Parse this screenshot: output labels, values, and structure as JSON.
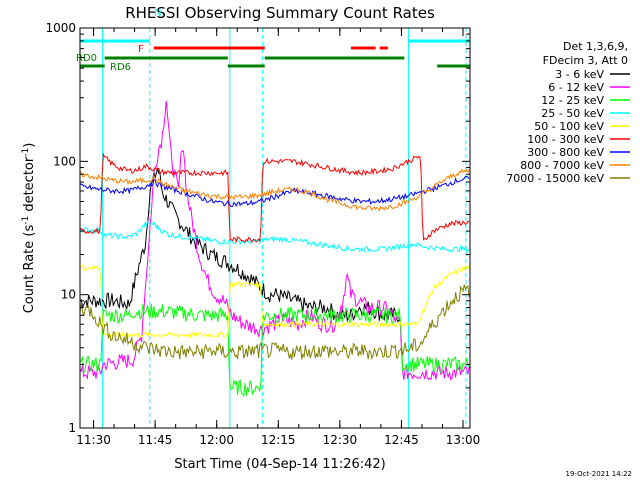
{
  "chart_data": {
    "type": "line",
    "title": "RHESSI Observing Summary Count Rates",
    "xlabel": "Start Time (04-Sep-14 11:26:42)",
    "ylabel_main": "Count Rate (s",
    "ylabel_sup1": "-1",
    "ylabel_mid": " detector",
    "ylabel_sup2": "-1",
    "ylabel_end": ")",
    "yscale": "log",
    "xlim": [
      0,
      95
    ],
    "ylim": [
      1,
      1000
    ],
    "x_unit": "minutes after 11:26:42",
    "xticks": [
      {
        "label": "11:30",
        "v": 3.3
      },
      {
        "label": "11:45",
        "v": 18.3
      },
      {
        "label": "12:00",
        "v": 33.3
      },
      {
        "label": "12:15",
        "v": 48.3
      },
      {
        "label": "12:30",
        "v": 63.3
      },
      {
        "label": "12:45",
        "v": 78.3
      },
      {
        "label": "13:00",
        "v": 93.3
      }
    ],
    "yticks": [
      {
        "label": "1",
        "v": 1
      },
      {
        "label": "10",
        "v": 10
      },
      {
        "label": "100",
        "v": 100
      },
      {
        "label": "1000",
        "v": 1000
      }
    ],
    "legend": {
      "header": [
        "Det 1,3,6,9,",
        "FDecim 3, Att 0"
      ],
      "placement": "right"
    },
    "series": [
      {
        "name": "3 - 6 keV",
        "color": "#000000",
        "points": [
          [
            0,
            9
          ],
          [
            5,
            9
          ],
          [
            8,
            9
          ],
          [
            12,
            8.5
          ],
          [
            14,
            15
          ],
          [
            16,
            25
          ],
          [
            17,
            60
          ],
          [
            19,
            90
          ],
          [
            20,
            60
          ],
          [
            23,
            40
          ],
          [
            26,
            30
          ],
          [
            28,
            25
          ],
          [
            32,
            20
          ],
          [
            35,
            18
          ],
          [
            38,
            16
          ],
          [
            42,
            13
          ],
          [
            46,
            10
          ],
          [
            48,
            10
          ],
          [
            52,
            9
          ],
          [
            56,
            8
          ],
          [
            60,
            8
          ],
          [
            63,
            7
          ],
          [
            66,
            7
          ],
          [
            68,
            8
          ],
          [
            70,
            8
          ],
          [
            72,
            7.5
          ],
          [
            74,
            7
          ],
          [
            76,
            7
          ],
          [
            78,
            7
          ]
        ]
      },
      {
        "name": "6 - 12 keV",
        "color": "#ff00ff",
        "points": [
          [
            0,
            2.6
          ],
          [
            5,
            2.6
          ],
          [
            5.5,
            3
          ],
          [
            12,
            3.2
          ],
          [
            13,
            3.3
          ],
          [
            15,
            5
          ],
          [
            17,
            30
          ],
          [
            18,
            80
          ],
          [
            19,
            120
          ],
          [
            20,
            150
          ],
          [
            21,
            300
          ],
          [
            22,
            120
          ],
          [
            23,
            80
          ],
          [
            24,
            60
          ],
          [
            25,
            150
          ],
          [
            26,
            60
          ],
          [
            27,
            40
          ],
          [
            29,
            20
          ],
          [
            31,
            13
          ],
          [
            33,
            10
          ],
          [
            35,
            9
          ],
          [
            37,
            7
          ],
          [
            40,
            6
          ],
          [
            44,
            5.5
          ],
          [
            47,
            6
          ],
          [
            50,
            6.5
          ],
          [
            53,
            6
          ],
          [
            56,
            7
          ],
          [
            59,
            6
          ],
          [
            62,
            6
          ],
          [
            64,
            9
          ],
          [
            65,
            14
          ],
          [
            66,
            10
          ],
          [
            68,
            9
          ],
          [
            70,
            8
          ],
          [
            72,
            8
          ],
          [
            74,
            8
          ],
          [
            76,
            7
          ],
          [
            78,
            6
          ],
          [
            78.5,
            2.6
          ],
          [
            95,
            2.6
          ]
        ]
      },
      {
        "name": "12 - 25 keV",
        "color": "#00ff00",
        "points": [
          [
            0,
            3
          ],
          [
            5,
            3
          ],
          [
            5.5,
            7
          ],
          [
            12,
            7
          ],
          [
            13,
            7.5
          ],
          [
            20,
            7.5
          ],
          [
            30,
            7
          ],
          [
            36,
            7
          ],
          [
            36.5,
            2
          ],
          [
            44,
            2
          ],
          [
            44.5,
            7
          ],
          [
            60,
            7
          ],
          [
            78,
            7
          ],
          [
            78.5,
            3
          ],
          [
            95,
            3
          ]
        ]
      },
      {
        "name": "25 - 50 keV",
        "color": "#00ffff",
        "points": [
          [
            0,
            31
          ],
          [
            5,
            30
          ],
          [
            6,
            28
          ],
          [
            12,
            27
          ],
          [
            14,
            29
          ],
          [
            16,
            34
          ],
          [
            18,
            34
          ],
          [
            20,
            30
          ],
          [
            22,
            28
          ],
          [
            26,
            27
          ],
          [
            30,
            26
          ],
          [
            34,
            25
          ],
          [
            38,
            25
          ],
          [
            42,
            25
          ],
          [
            46,
            26
          ],
          [
            50,
            26
          ],
          [
            54,
            25
          ],
          [
            58,
            24
          ],
          [
            62,
            23
          ],
          [
            66,
            22
          ],
          [
            70,
            22
          ],
          [
            74,
            22
          ],
          [
            78,
            23
          ],
          [
            81,
            24
          ],
          [
            84,
            23
          ],
          [
            88,
            22
          ],
          [
            92,
            22
          ],
          [
            95,
            22
          ]
        ]
      },
      {
        "name": "50 - 100 keV",
        "color": "#ffff00",
        "points": [
          [
            0,
            16
          ],
          [
            5,
            16
          ],
          [
            5.5,
            5
          ],
          [
            36,
            5
          ],
          [
            36.5,
            12
          ],
          [
            44,
            12
          ],
          [
            44.5,
            6
          ],
          [
            82,
            6
          ],
          [
            84,
            8
          ],
          [
            86,
            11
          ],
          [
            90,
            14
          ],
          [
            94,
            16
          ],
          [
            95,
            16
          ]
        ]
      },
      {
        "name": "100 - 300 keV",
        "color": "#ff0000",
        "points": [
          [
            0,
            30
          ],
          [
            3,
            30
          ],
          [
            5,
            30
          ],
          [
            5.5,
            110
          ],
          [
            8,
            95
          ],
          [
            10,
            88
          ],
          [
            12,
            85
          ],
          [
            14,
            86
          ],
          [
            16,
            92
          ],
          [
            18,
            88
          ],
          [
            20,
            83
          ],
          [
            24,
            82
          ],
          [
            28,
            82
          ],
          [
            32,
            82
          ],
          [
            36,
            82
          ],
          [
            36.5,
            26
          ],
          [
            44,
            26
          ],
          [
            44.5,
            100
          ],
          [
            48,
            100
          ],
          [
            52,
            100
          ],
          [
            56,
            95
          ],
          [
            60,
            90
          ],
          [
            64,
            85
          ],
          [
            68,
            82
          ],
          [
            72,
            84
          ],
          [
            76,
            88
          ],
          [
            80,
            100
          ],
          [
            83,
            110
          ],
          [
            83.5,
            25
          ],
          [
            86,
            30
          ],
          [
            90,
            34
          ],
          [
            95,
            35
          ]
        ]
      },
      {
        "name": "300 - 800 keV",
        "color": "#0000ff",
        "points": [
          [
            0,
            65
          ],
          [
            4,
            62
          ],
          [
            8,
            60
          ],
          [
            12,
            60
          ],
          [
            16,
            65
          ],
          [
            18,
            70
          ],
          [
            20,
            65
          ],
          [
            24,
            60
          ],
          [
            28,
            55
          ],
          [
            32,
            50
          ],
          [
            36,
            48
          ],
          [
            40,
            48
          ],
          [
            44,
            50
          ],
          [
            48,
            55
          ],
          [
            52,
            60
          ],
          [
            56,
            58
          ],
          [
            60,
            55
          ],
          [
            64,
            52
          ],
          [
            68,
            50
          ],
          [
            72,
            50
          ],
          [
            76,
            52
          ],
          [
            80,
            55
          ],
          [
            84,
            60
          ],
          [
            88,
            65
          ],
          [
            92,
            72
          ],
          [
            95,
            75
          ]
        ]
      },
      {
        "name": "800 - 7000 keV",
        "color": "#ff8000",
        "points": [
          [
            0,
            80
          ],
          [
            4,
            76
          ],
          [
            8,
            72
          ],
          [
            12,
            70
          ],
          [
            16,
            72
          ],
          [
            18,
            75
          ],
          [
            20,
            68
          ],
          [
            24,
            62
          ],
          [
            28,
            58
          ],
          [
            32,
            55
          ],
          [
            36,
            54
          ],
          [
            40,
            54
          ],
          [
            44,
            56
          ],
          [
            48,
            60
          ],
          [
            52,
            62
          ],
          [
            56,
            58
          ],
          [
            60,
            52
          ],
          [
            64,
            48
          ],
          [
            68,
            45
          ],
          [
            72,
            44
          ],
          [
            76,
            46
          ],
          [
            80,
            50
          ],
          [
            84,
            58
          ],
          [
            88,
            70
          ],
          [
            92,
            82
          ],
          [
            95,
            85
          ]
        ]
      },
      {
        "name": "7000 - 15000 keV",
        "color": "#808000",
        "points": [
          [
            0,
            8
          ],
          [
            3,
            7.5
          ],
          [
            5,
            6
          ],
          [
            8,
            5
          ],
          [
            12,
            4.5
          ],
          [
            16,
            4
          ],
          [
            20,
            3.8
          ],
          [
            24,
            3.7
          ],
          [
            28,
            3.7
          ],
          [
            32,
            3.8
          ],
          [
            36,
            3.7
          ],
          [
            40,
            3.7
          ],
          [
            44,
            3.8
          ],
          [
            48,
            3.8
          ],
          [
            52,
            3.7
          ],
          [
            56,
            3.8
          ],
          [
            60,
            3.8
          ],
          [
            64,
            3.7
          ],
          [
            68,
            3.8
          ],
          [
            72,
            3.7
          ],
          [
            76,
            3.8
          ],
          [
            80,
            3.9
          ],
          [
            83,
            4.3
          ],
          [
            86,
            6
          ],
          [
            89,
            8
          ],
          [
            92,
            10
          ],
          [
            95,
            11
          ]
        ]
      }
    ],
    "annotations": [
      {
        "text": "RD0",
        "color": "#008000"
      },
      {
        "text": "RD6",
        "color": "#008000"
      },
      {
        "text": "N",
        "color": "#00ffff"
      },
      {
        "text": "F",
        "color": "#ff0000"
      }
    ],
    "attenuator_bars": [
      {
        "color": "#00ffff",
        "row": 1,
        "x0": 0,
        "x1": 17
      },
      {
        "color": "#00ffff",
        "row": 1,
        "x0": 80,
        "x1": 95
      },
      {
        "color": "#ff0000",
        "row": 2,
        "x0": 18,
        "x1": 45
      },
      {
        "color": "#ff0000",
        "row": 2,
        "x0": 66,
        "x1": 72
      },
      {
        "color": "#ff0000",
        "row": 2,
        "x0": 73,
        "x1": 75
      },
      {
        "color": "#008000",
        "row": 3,
        "x0": 6,
        "x1": 36
      },
      {
        "color": "#008000",
        "row": 3,
        "x0": 45,
        "x1": 79
      },
      {
        "color": "#008000",
        "row": 4,
        "x0": 0,
        "x1": 6
      },
      {
        "color": "#008000",
        "row": 4,
        "x0": 36,
        "x1": 45
      },
      {
        "color": "#008000",
        "row": 4,
        "x0": 87,
        "x1": 95
      }
    ],
    "vlines": [
      {
        "color": "#00ffff",
        "style": "solid",
        "v": 5.5
      },
      {
        "color": "#00ffff",
        "style": "dashed",
        "v": 17
      },
      {
        "color": "#00ffff",
        "style": "solid",
        "v": 36.5
      },
      {
        "color": "#00ffff",
        "style": "dashed",
        "v": 44.5
      },
      {
        "color": "#00ffff",
        "style": "solid",
        "v": 80
      },
      {
        "color": "#00ffff",
        "style": "dashed",
        "v": 94
      }
    ],
    "timestamp": "19-Oct-2021 14:22"
  }
}
